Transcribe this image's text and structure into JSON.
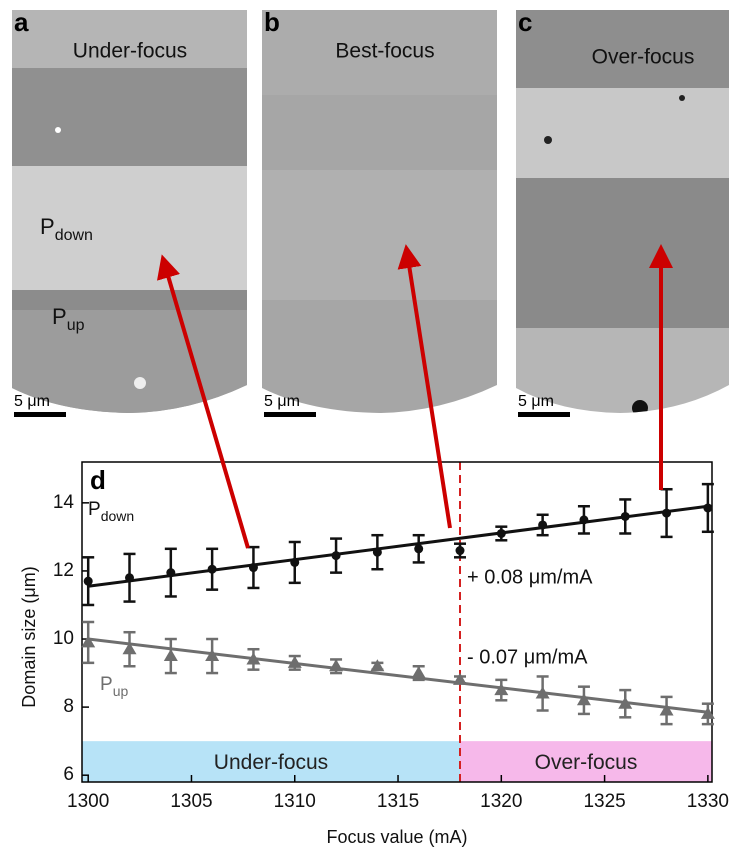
{
  "panels": [
    {
      "letter": "a",
      "title": "Under-focus",
      "scale": "5 μm",
      "labels": [
        {
          "main": "P",
          "sub": "down"
        },
        {
          "main": "P",
          "sub": "up"
        }
      ]
    },
    {
      "letter": "b",
      "title": "Best-focus",
      "scale": "5 μm"
    },
    {
      "letter": "c",
      "title": "Over-focus",
      "scale": "5 μm"
    }
  ],
  "chart_data": {
    "type": "errorbar",
    "letter": "d",
    "x_label": "Focus value (mA)",
    "y_label": "Domain size (μm)",
    "xlim": [
      1299.7,
      1330.2
    ],
    "ylim": [
      5.8,
      15.2
    ],
    "xticks": [
      1300,
      1305,
      1310,
      1315,
      1320,
      1325,
      1330
    ],
    "yticks": [
      6,
      8,
      10,
      12,
      14
    ],
    "x": [
      1300,
      1302,
      1304,
      1306,
      1308,
      1310,
      1312,
      1314,
      1316,
      1318,
      1320,
      1322,
      1324,
      1326,
      1328,
      1330
    ],
    "series": [
      {
        "label": {
          "main": "P",
          "sub": "down"
        },
        "color": "#111111",
        "marker": "circle",
        "values": [
          11.7,
          11.8,
          11.95,
          12.05,
          12.1,
          12.25,
          12.45,
          12.55,
          12.65,
          12.6,
          13.1,
          13.35,
          13.5,
          13.6,
          13.7,
          13.85
        ],
        "errors": [
          0.7,
          0.7,
          0.7,
          0.6,
          0.6,
          0.6,
          0.5,
          0.5,
          0.4,
          0.2,
          0.2,
          0.3,
          0.4,
          0.5,
          0.7,
          0.7
        ],
        "fit": {
          "x": [
            1300,
            1330
          ],
          "y": [
            11.55,
            13.9
          ],
          "label": "+ 0.08 μm/mA"
        }
      },
      {
        "label": {
          "main": "P",
          "sub": "up"
        },
        "color": "#6e6e6e",
        "marker": "triangle",
        "values": [
          9.9,
          9.7,
          9.5,
          9.5,
          9.4,
          9.3,
          9.2,
          9.2,
          9.0,
          8.8,
          8.5,
          8.4,
          8.2,
          8.1,
          7.9,
          7.8
        ],
        "errors": [
          0.6,
          0.5,
          0.5,
          0.5,
          0.3,
          0.2,
          0.2,
          0.1,
          0.2,
          0.1,
          0.3,
          0.5,
          0.4,
          0.4,
          0.4,
          0.3
        ],
        "fit": {
          "x": [
            1300,
            1330
          ],
          "y": [
            10.0,
            7.85
          ],
          "label": "- 0.07 μm/mA"
        }
      }
    ],
    "best_focus": 1318,
    "regions": [
      {
        "label": "Under-focus",
        "x": [
          1299.7,
          1318
        ],
        "y": [
          5.8,
          7
        ],
        "color": "#b7e3f7"
      },
      {
        "label": "Over-focus",
        "x": [
          1318,
          1330.2
        ],
        "y": [
          5.8,
          7
        ],
        "color": "#f6b8ea"
      }
    ]
  }
}
